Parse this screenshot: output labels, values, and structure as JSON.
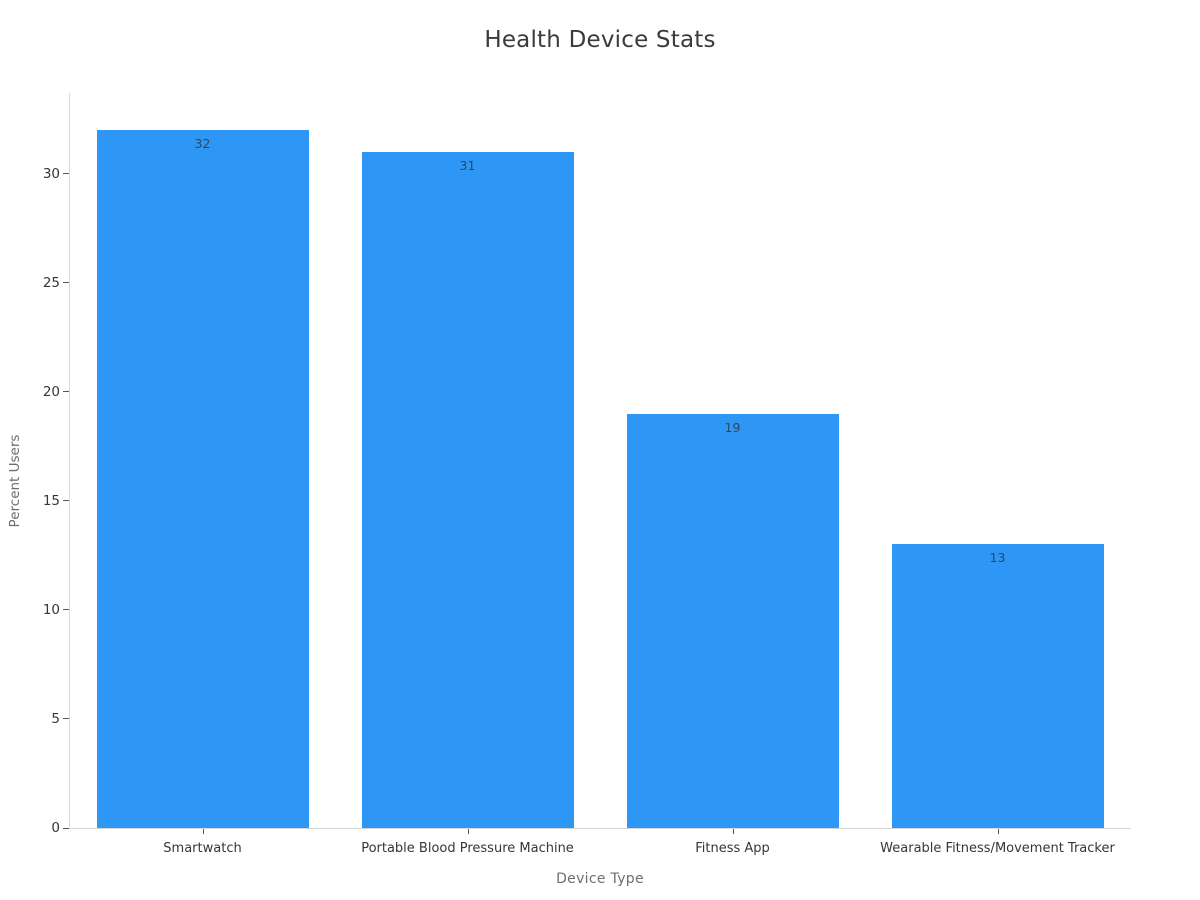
{
  "chart_data": {
    "type": "bar",
    "title": "Health Device Stats",
    "xlabel": "Device Type",
    "ylabel": "Percent Users",
    "categories": [
      "Smartwatch",
      "Portable Blood Pressure Machine",
      "Fitness App",
      "Wearable Fitness/Movement Tracker"
    ],
    "values": [
      32,
      31,
      19,
      13
    ],
    "bar_labels": [
      "32",
      "31",
      "19",
      "13"
    ],
    "yticks": [
      0,
      5,
      10,
      15,
      20,
      25,
      30
    ],
    "ylim": [
      0,
      33.7
    ],
    "grid": false,
    "legend": "none",
    "colors": {
      "bar": "#2E96F5",
      "bar_label": "#33475B",
      "title": "#3B3B3B",
      "tick_label": "#363636",
      "axis_title": "#6E6E6E",
      "axis_line": "#D9D9D9",
      "tick_mark": "#555555",
      "background": "#FFFFFF"
    }
  }
}
